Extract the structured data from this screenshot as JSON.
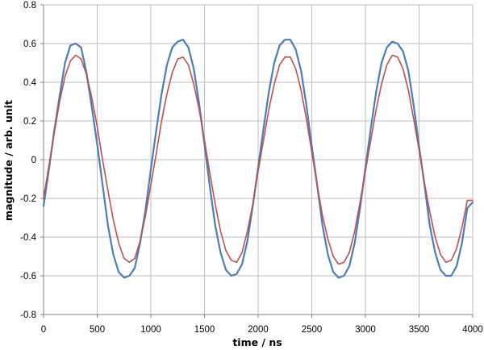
{
  "chart_data": {
    "type": "line",
    "title": "",
    "xlabel": "time / ns",
    "ylabel": "magnitude / arb. unit",
    "xlim": [
      0,
      4000
    ],
    "ylim": [
      -0.8,
      0.8
    ],
    "x_ticks": [
      0,
      500,
      1000,
      1500,
      2000,
      2500,
      3000,
      3500,
      4000
    ],
    "y_ticks": [
      -0.8,
      -0.6,
      -0.4,
      -0.2,
      0,
      0.2,
      0.4,
      0.6,
      0.8
    ],
    "x_tick_labels": [
      "0",
      "500",
      "1000",
      "1500",
      "2000",
      "2500",
      "3000",
      "3500",
      "4000"
    ],
    "y_tick_labels": [
      "-0.8",
      "-0.6",
      "-0.4",
      "-0.2",
      "0",
      "0.2",
      "0.4",
      "0.6",
      "0.8"
    ],
    "grid": true,
    "legend": "none",
    "series": [
      {
        "color": "#4a7ebb",
        "x": [
          0,
          50,
          100,
          150,
          200,
          250,
          300,
          350,
          400,
          450,
          500,
          550,
          600,
          650,
          700,
          750,
          800,
          850,
          900,
          950,
          1000,
          1050,
          1100,
          1150,
          1200,
          1250,
          1300,
          1350,
          1400,
          1450,
          1500,
          1550,
          1600,
          1650,
          1700,
          1750,
          1800,
          1850,
          1900,
          1950,
          2000,
          2050,
          2100,
          2150,
          2200,
          2250,
          2300,
          2350,
          2400,
          2450,
          2500,
          2550,
          2600,
          2650,
          2700,
          2750,
          2800,
          2850,
          2900,
          2950,
          3000,
          3050,
          3100,
          3150,
          3200,
          3250,
          3300,
          3350,
          3400,
          3450,
          3500,
          3550,
          3600,
          3650,
          3700,
          3750,
          3800,
          3850,
          3900,
          3950,
          4000
        ],
        "y": [
          -0.24,
          -0.05,
          0.15,
          0.33,
          0.5,
          0.59,
          0.6,
          0.58,
          0.45,
          0.27,
          0.08,
          -0.13,
          -0.34,
          -0.49,
          -0.58,
          -0.61,
          -0.6,
          -0.56,
          -0.43,
          -0.26,
          -0.05,
          0.15,
          0.34,
          0.49,
          0.58,
          0.61,
          0.62,
          0.58,
          0.47,
          0.29,
          0.08,
          -0.14,
          -0.34,
          -0.48,
          -0.57,
          -0.6,
          -0.59,
          -0.54,
          -0.42,
          -0.24,
          -0.04,
          0.16,
          0.35,
          0.5,
          0.59,
          0.62,
          0.62,
          0.57,
          0.46,
          0.28,
          0.07,
          -0.13,
          -0.34,
          -0.49,
          -0.58,
          -0.61,
          -0.6,
          -0.55,
          -0.43,
          -0.25,
          -0.04,
          0.16,
          0.35,
          0.5,
          0.58,
          0.61,
          0.6,
          0.56,
          0.46,
          0.28,
          0.07,
          -0.13,
          -0.34,
          -0.48,
          -0.57,
          -0.6,
          -0.6,
          -0.55,
          -0.43,
          -0.25,
          -0.22
        ]
      },
      {
        "color": "#c0504d",
        "x": [
          0,
          50,
          100,
          150,
          200,
          250,
          300,
          350,
          400,
          450,
          500,
          550,
          600,
          650,
          700,
          750,
          800,
          850,
          900,
          950,
          1000,
          1050,
          1100,
          1150,
          1200,
          1250,
          1300,
          1350,
          1400,
          1450,
          1500,
          1550,
          1600,
          1650,
          1700,
          1750,
          1800,
          1850,
          1900,
          1950,
          2000,
          2050,
          2100,
          2150,
          2200,
          2250,
          2300,
          2350,
          2400,
          2450,
          2500,
          2550,
          2600,
          2650,
          2700,
          2750,
          2800,
          2850,
          2900,
          2950,
          3000,
          3050,
          3100,
          3150,
          3200,
          3250,
          3300,
          3350,
          3400,
          3450,
          3500,
          3550,
          3600,
          3650,
          3700,
          3750,
          3800,
          3850,
          3900,
          3950,
          4000
        ],
        "y": [
          -0.2,
          -0.03,
          0.14,
          0.3,
          0.43,
          0.51,
          0.54,
          0.52,
          0.44,
          0.32,
          0.17,
          0.0,
          -0.16,
          -0.31,
          -0.43,
          -0.51,
          -0.53,
          -0.51,
          -0.42,
          -0.29,
          -0.13,
          0.03,
          0.2,
          0.34,
          0.45,
          0.52,
          0.53,
          0.49,
          0.39,
          0.26,
          0.1,
          -0.07,
          -0.23,
          -0.37,
          -0.47,
          -0.52,
          -0.53,
          -0.48,
          -0.37,
          -0.23,
          -0.06,
          0.1,
          0.26,
          0.39,
          0.49,
          0.53,
          0.53,
          0.47,
          0.36,
          0.21,
          0.04,
          -0.13,
          -0.29,
          -0.41,
          -0.5,
          -0.54,
          -0.53,
          -0.48,
          -0.37,
          -0.22,
          -0.06,
          0.1,
          0.26,
          0.39,
          0.49,
          0.54,
          0.53,
          0.47,
          0.36,
          0.21,
          0.05,
          -0.12,
          -0.27,
          -0.4,
          -0.49,
          -0.53,
          -0.52,
          -0.46,
          -0.35,
          -0.21,
          -0.21
        ]
      }
    ]
  }
}
